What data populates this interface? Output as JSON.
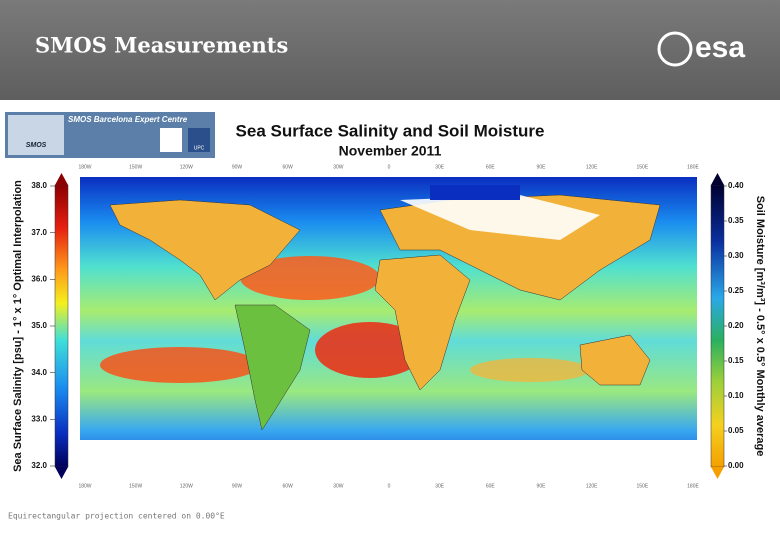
{
  "header": {
    "title": "SMOS Measurements",
    "logo": "esa"
  },
  "banner": {
    "title": "SMOS Barcelona Expert Centre",
    "mission": "SMOS",
    "university": "UPC"
  },
  "map": {
    "title": "Sea Surface Salinity and Soil Moisture",
    "subtitle": "November 2011",
    "longitude_labels": [
      "180W",
      "150W",
      "120W",
      "90W",
      "60W",
      "30W",
      "0",
      "30E",
      "60E",
      "90E",
      "120E",
      "150E",
      "180E"
    ],
    "left_scale": {
      "label": "Sea Surface Salinity [psu] - 1° x 1° Optimal Interpolation",
      "ticks": [
        "38.0",
        "37.0",
        "36.0",
        "35.0",
        "34.0",
        "33.0",
        "32.0"
      ]
    },
    "right_scale": {
      "label": "Soil Moisture [m³/m³] - 0.5° x 0.5° Monthly average",
      "ticks": [
        "0.40",
        "0.35",
        "0.30",
        "0.25",
        "0.20",
        "0.15",
        "0.10",
        "0.05",
        "0.00"
      ]
    },
    "footer": "Equirectangular projection centered on 0.00°E"
  }
}
